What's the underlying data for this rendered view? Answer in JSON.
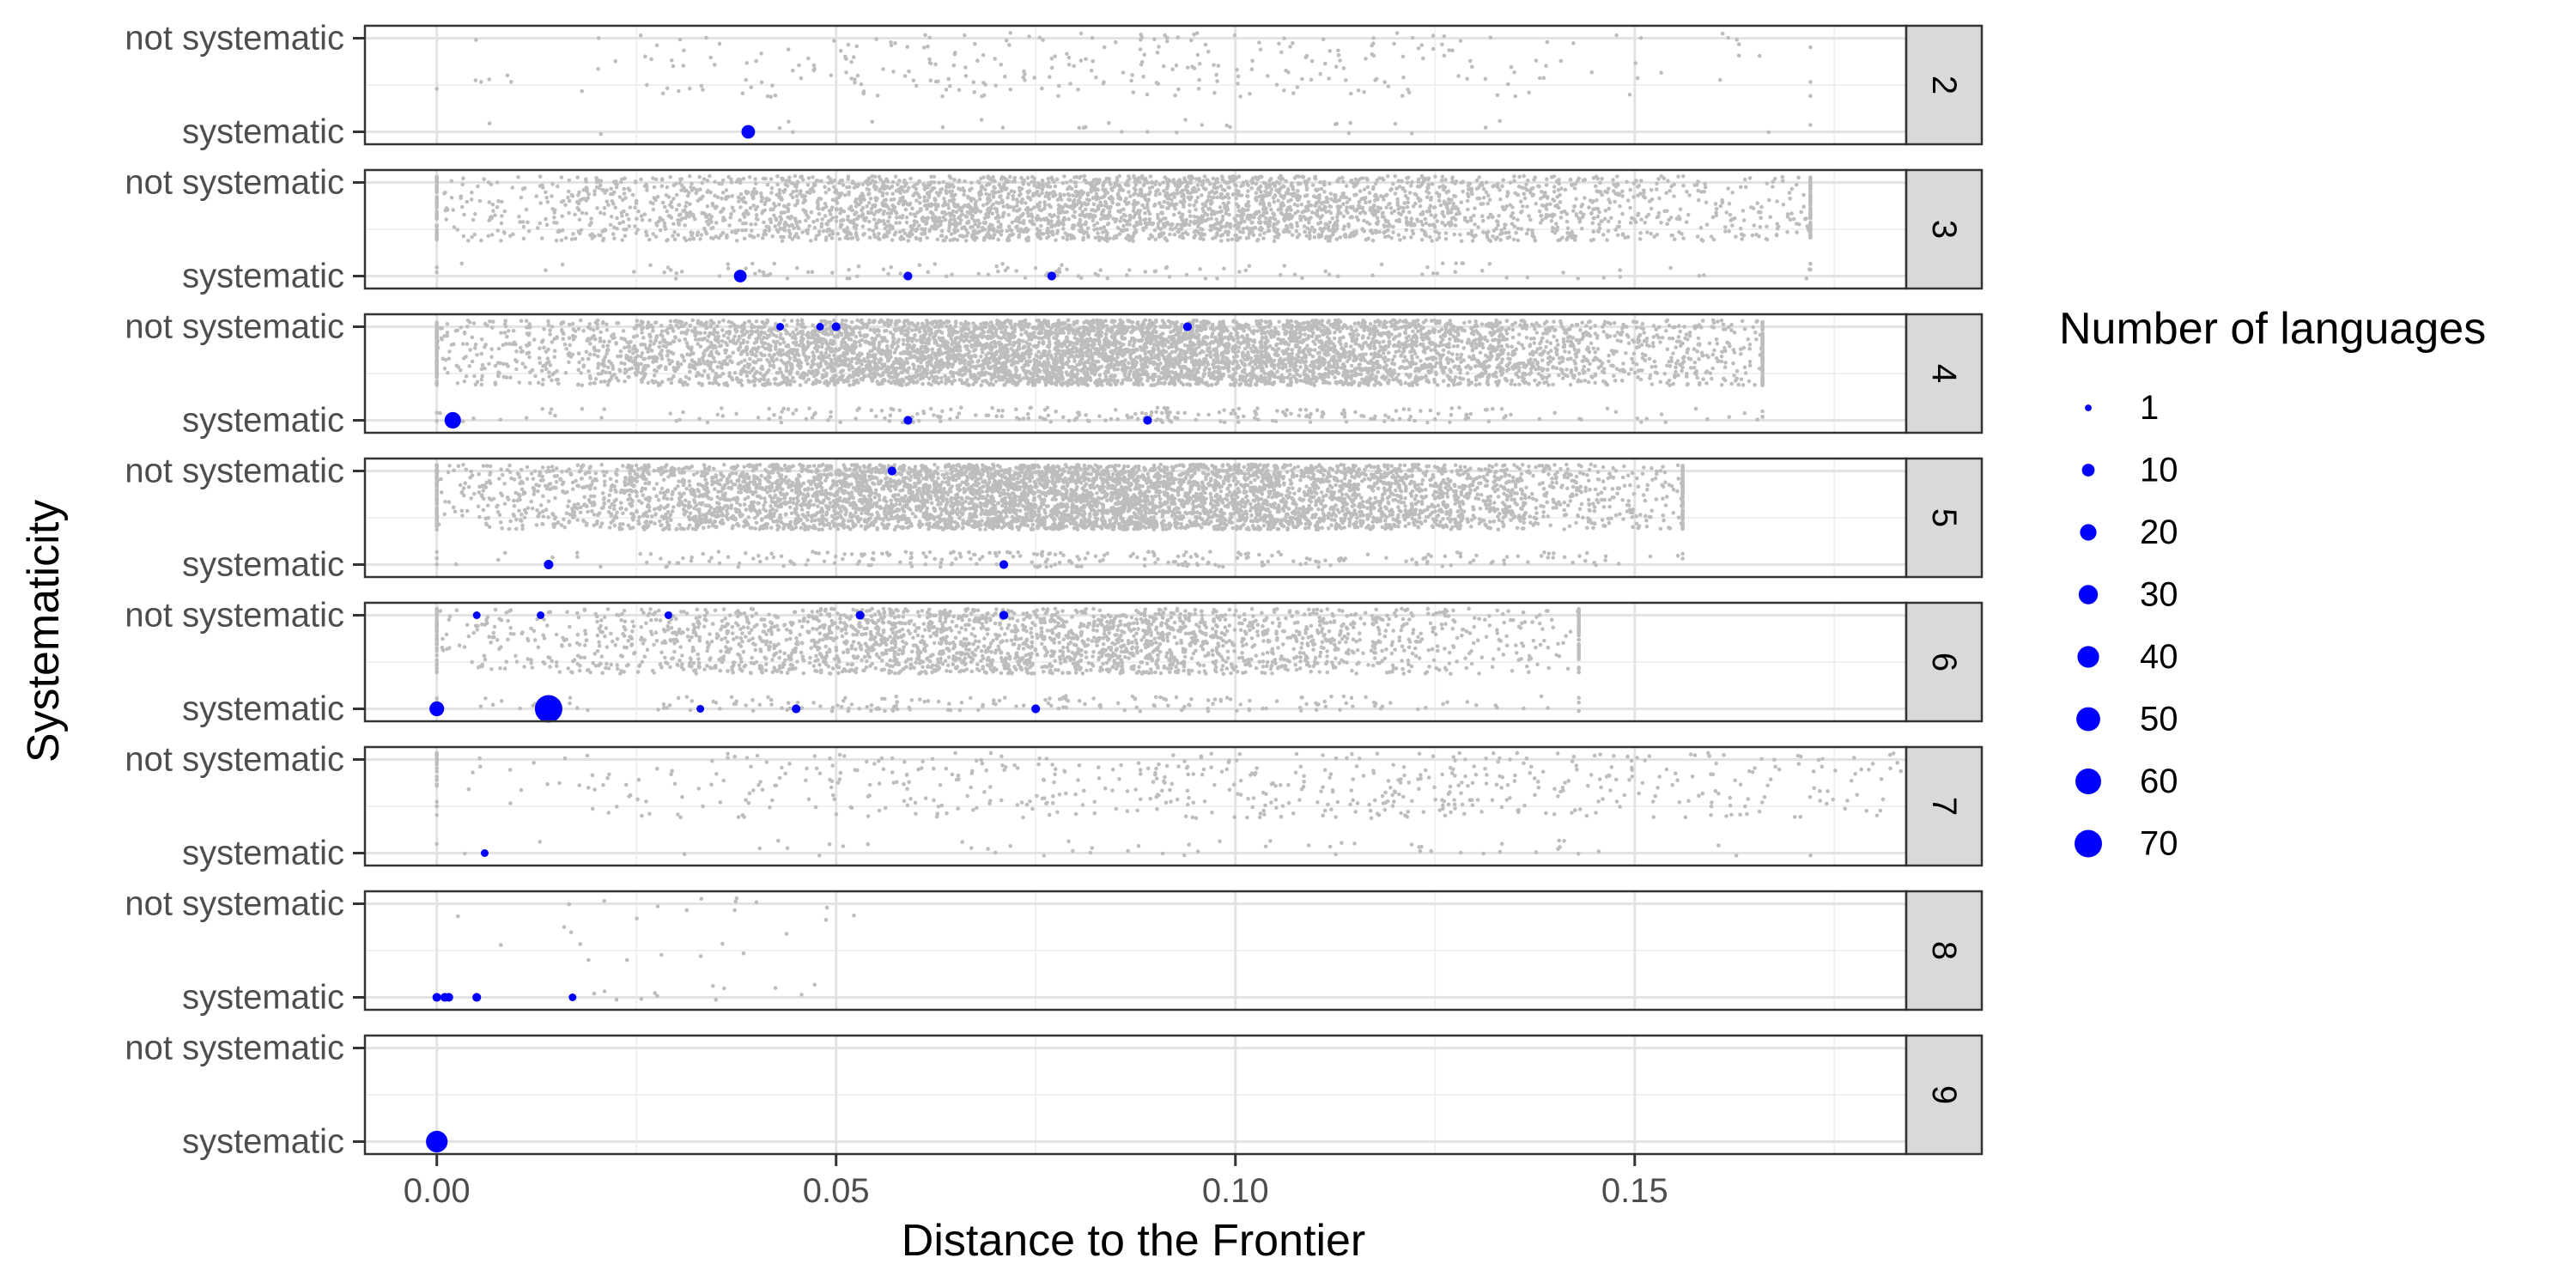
{
  "chart_data": {
    "type": "scatter",
    "xlabel": "Distance to the Frontier",
    "ylabel": "Systematicity",
    "x_ticks": [
      "0.00",
      "0.05",
      "0.10",
      "0.15"
    ],
    "x_tick_values": [
      0.0,
      0.05,
      0.1,
      0.15
    ],
    "xlim": [
      -0.009,
      0.184
    ],
    "y_categories": [
      "systematic",
      "not systematic"
    ],
    "grid": true,
    "facet_strip_position": "right",
    "legend": {
      "title": "Number of languages",
      "position": "right",
      "entries": [
        {
          "label": "1",
          "value": 1
        },
        {
          "label": "10",
          "value": 10
        },
        {
          "label": "20",
          "value": 20
        },
        {
          "label": "30",
          "value": 30
        },
        {
          "label": "40",
          "value": 40
        },
        {
          "label": "50",
          "value": 50
        },
        {
          "label": "60",
          "value": 60
        },
        {
          "label": "70",
          "value": 70
        }
      ]
    },
    "colors": {
      "highlight": "#0000ff",
      "background_points": "#bdbdbd",
      "strip": "#d9d9d9"
    },
    "background_point_approx_count": [
      {
        "facet": "2",
        "not_systematic": 300,
        "systematic": 30
      },
      {
        "facet": "3",
        "not_systematic": 3800,
        "systematic": 120
      },
      {
        "facet": "4",
        "not_systematic": 6500,
        "systematic": 250
      },
      {
        "facet": "5",
        "not_systematic": 6000,
        "systematic": 260
      },
      {
        "facet": "6",
        "not_systematic": 2600,
        "systematic": 200
      },
      {
        "facet": "7",
        "not_systematic": 650,
        "systematic": 60
      },
      {
        "facet": "8",
        "not_systematic": 25,
        "systematic": 12
      },
      {
        "facet": "9",
        "not_systematic": 0,
        "systematic": 0
      }
    ],
    "background_x_range": [
      {
        "facet": "2",
        "min": 0.0,
        "max": 0.172
      },
      {
        "facet": "3",
        "min": 0.0,
        "max": 0.172
      },
      {
        "facet": "4",
        "min": 0.0,
        "max": 0.166
      },
      {
        "facet": "5",
        "min": 0.0,
        "max": 0.156
      },
      {
        "facet": "6",
        "min": 0.0,
        "max": 0.143
      },
      {
        "facet": "7",
        "min": 0.0,
        "max": 0.22
      },
      {
        "facet": "8",
        "min": 0.0,
        "max": 0.055
      },
      {
        "facet": "9",
        "min": 0.0,
        "max": 0.0
      }
    ],
    "facets": [
      {
        "label": "2",
        "points": [
          {
            "x": 0.039,
            "y": "systematic",
            "n": 12
          }
        ]
      },
      {
        "label": "3",
        "points": [
          {
            "x": 0.038,
            "y": "systematic",
            "n": 10
          },
          {
            "x": 0.059,
            "y": "systematic",
            "n": 3
          },
          {
            "x": 0.077,
            "y": "systematic",
            "n": 3
          }
        ]
      },
      {
        "label": "4",
        "points": [
          {
            "x": 0.002,
            "y": "systematic",
            "n": 20
          },
          {
            "x": 0.043,
            "y": "not systematic",
            "n": 2
          },
          {
            "x": 0.048,
            "y": "not systematic",
            "n": 2
          },
          {
            "x": 0.05,
            "y": "not systematic",
            "n": 3
          },
          {
            "x": 0.059,
            "y": "systematic",
            "n": 3
          },
          {
            "x": 0.089,
            "y": "systematic",
            "n": 3
          },
          {
            "x": 0.094,
            "y": "not systematic",
            "n": 3
          }
        ]
      },
      {
        "label": "5",
        "points": [
          {
            "x": 0.014,
            "y": "systematic",
            "n": 4
          },
          {
            "x": 0.057,
            "y": "not systematic",
            "n": 3
          },
          {
            "x": 0.071,
            "y": "systematic",
            "n": 3
          }
        ]
      },
      {
        "label": "6",
        "points": [
          {
            "x": 0.0,
            "y": "systematic",
            "n": 15
          },
          {
            "x": 0.005,
            "y": "not systematic",
            "n": 2
          },
          {
            "x": 0.013,
            "y": "not systematic",
            "n": 2
          },
          {
            "x": 0.014,
            "y": "systematic",
            "n": 70
          },
          {
            "x": 0.029,
            "y": "not systematic",
            "n": 2
          },
          {
            "x": 0.033,
            "y": "systematic",
            "n": 2
          },
          {
            "x": 0.045,
            "y": "systematic",
            "n": 3
          },
          {
            "x": 0.053,
            "y": "not systematic",
            "n": 3
          },
          {
            "x": 0.071,
            "y": "not systematic",
            "n": 3
          },
          {
            "x": 0.075,
            "y": "systematic",
            "n": 3
          }
        ]
      },
      {
        "label": "7",
        "points": [
          {
            "x": 0.006,
            "y": "systematic",
            "n": 2
          }
        ]
      },
      {
        "label": "8",
        "points": [
          {
            "x": 0.0,
            "y": "systematic",
            "n": 3
          },
          {
            "x": 0.001,
            "y": "systematic",
            "n": 3
          },
          {
            "x": 0.0015,
            "y": "systematic",
            "n": 3
          },
          {
            "x": 0.005,
            "y": "systematic",
            "n": 3
          },
          {
            "x": 0.017,
            "y": "systematic",
            "n": 2
          }
        ]
      },
      {
        "label": "9",
        "points": [
          {
            "x": 0.0,
            "y": "systematic",
            "n": 40
          }
        ]
      }
    ]
  }
}
